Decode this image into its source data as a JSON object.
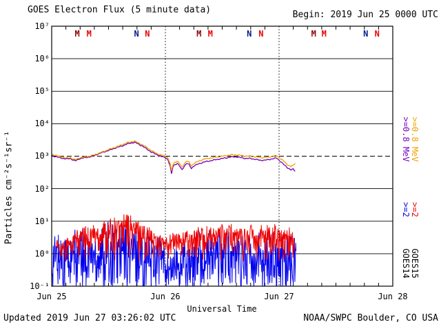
{
  "header": {
    "title": "GOES Electron Flux (5 minute data)",
    "begin": "Begin: 2019 Jun 25 0000 UTC"
  },
  "footer": {
    "updated": "Updated 2019 Jun 27 03:26:02 UTC",
    "source": "NOAA/SWPC Boulder, CO USA"
  },
  "axes": {
    "y_label": "Particles cm⁻²s⁻¹sr⁻¹",
    "x_label": "Universal Time",
    "y_ticks": [
      "10⁷",
      "10⁶",
      "10⁵",
      "10⁴",
      "10³",
      "10²",
      "10¹",
      "10⁰",
      "10⁻¹"
    ],
    "x_ticks": [
      "Jun 25",
      "Jun 26",
      "Jun 27",
      "Jun 28"
    ]
  },
  "legend": {
    "e08": {
      "label": ">=0.8 MeV",
      "goes14_color": "#7700bb",
      "goes15_color": "#f0a000"
    },
    "e2": {
      "label": ">=2",
      "goes14_color": "#0000ee",
      "goes15_color": "#ee0000"
    },
    "goes14": "GOES14",
    "goes15": "GOES15"
  },
  "chart_data": {
    "type": "line",
    "title": "GOES Electron Flux (5 minute data)",
    "xlabel": "Universal Time",
    "ylabel": "Particles cm^-2 s^-1 sr^-1",
    "x_unit": "hours since 2019 Jun 25 0000 UTC",
    "xlim": [
      0,
      72
    ],
    "ylog": true,
    "ylim": [
      0.1,
      10000000
    ],
    "y_tick_exponents": [
      7,
      6,
      5,
      4,
      3,
      2,
      1,
      0,
      -1
    ],
    "x_ticks": [
      {
        "t": 0,
        "label": "Jun 25"
      },
      {
        "t": 24,
        "label": "Jun 26"
      },
      {
        "t": 48,
        "label": "Jun 27"
      },
      {
        "t": 72,
        "label": "Jun 28"
      }
    ],
    "threshold_line": 1000,
    "day_gridlines_t": [
      24,
      48
    ],
    "time_markers": [
      {
        "t": 5.4,
        "label": "M",
        "color": "#8b0000"
      },
      {
        "t": 7.9,
        "label": "M",
        "color": "#e80000"
      },
      {
        "t": 17.9,
        "label": "N",
        "color": "#001a8b"
      },
      {
        "t": 20.2,
        "label": "N",
        "color": "#e80000"
      },
      {
        "t": 31.1,
        "label": "M",
        "color": "#8b0000"
      },
      {
        "t": 33.5,
        "label": "M",
        "color": "#e80000"
      },
      {
        "t": 41.7,
        "label": "N",
        "color": "#001a8b"
      },
      {
        "t": 44.2,
        "label": "N",
        "color": "#e80000"
      },
      {
        "t": 55.3,
        "label": "M",
        "color": "#8b0000"
      },
      {
        "t": 57.5,
        "label": "M",
        "color": "#e80000"
      },
      {
        "t": 66.3,
        "label": "N",
        "color": "#001a8b"
      },
      {
        "t": 68.7,
        "label": "N",
        "color": "#e80000"
      }
    ],
    "series": [
      {
        "name": "GOES14 >=2 MeV",
        "satellite": "GOES14",
        "channel": ">=2 MeV",
        "color": "#0000ee",
        "style": "noise",
        "t_start": 0,
        "t_end": 51.6,
        "floor": 0.08,
        "hourly_max": [
          5,
          4,
          6,
          5,
          3,
          6,
          5,
          7,
          8,
          7,
          9,
          8,
          10,
          9,
          10,
          9,
          8,
          9,
          7,
          6,
          5,
          6,
          4,
          5,
          1.5,
          0.8,
          2,
          1,
          3,
          4,
          3,
          5,
          4,
          5,
          4,
          5,
          5,
          6,
          5,
          7,
          5,
          6,
          5,
          6,
          6,
          5,
          7,
          5,
          6,
          5,
          6,
          4
        ],
        "render": {
          "seed": 7,
          "bias": 0.9
        }
      },
      {
        "name": "GOES15 >=2 MeV",
        "satellite": "GOES15",
        "channel": ">=2 MeV",
        "color": "#ee0000",
        "style": "noise",
        "t_start": 1,
        "t_end": 51.5,
        "floor": 0.5,
        "hourly_max": [
          2,
          3,
          2,
          4,
          3,
          5,
          6,
          7,
          8,
          10,
          9,
          12,
          10,
          14,
          12,
          16,
          18,
          15,
          12,
          10,
          8,
          6,
          5,
          4,
          3,
          4,
          5,
          4,
          5,
          6,
          5,
          7,
          6,
          8,
          6,
          7,
          8,
          7,
          9,
          7,
          8,
          6,
          9,
          7,
          8,
          10,
          7,
          9,
          8,
          6,
          7,
          5
        ],
        "render": {
          "seed": 13,
          "bias": 0.5
        }
      },
      {
        "name": "GOES14 >=0.8 MeV",
        "satellite": "GOES14",
        "channel": ">=0.8 MeV",
        "color": "#7700bb",
        "style": "line",
        "points": [
          [
            0,
            1050
          ],
          [
            1,
            950
          ],
          [
            2,
            880
          ],
          [
            3,
            820
          ],
          [
            4,
            850
          ],
          [
            4.5,
            760
          ],
          [
            5,
            720
          ],
          [
            6,
            850
          ],
          [
            7,
            900
          ],
          [
            8,
            950
          ],
          [
            9,
            1050
          ],
          [
            10,
            1200
          ],
          [
            11,
            1350
          ],
          [
            12,
            1500
          ],
          [
            13,
            1700
          ],
          [
            14,
            1900
          ],
          [
            15,
            2100
          ],
          [
            16,
            2400
          ],
          [
            17,
            2600
          ],
          [
            17.5,
            2650
          ],
          [
            18,
            2500
          ],
          [
            19,
            2100
          ],
          [
            20,
            1700
          ],
          [
            21,
            1350
          ],
          [
            22,
            1150
          ],
          [
            23,
            1000
          ],
          [
            24,
            900
          ],
          [
            24.5,
            800
          ],
          [
            25,
            500
          ],
          [
            25.3,
            280
          ],
          [
            25.6,
            480
          ],
          [
            26,
            550
          ],
          [
            26.5,
            600
          ],
          [
            27,
            500
          ],
          [
            27.5,
            380
          ],
          [
            28,
            500
          ],
          [
            28.5,
            600
          ],
          [
            29,
            550
          ],
          [
            29.5,
            420
          ],
          [
            30,
            500
          ],
          [
            31,
            580
          ],
          [
            32,
            650
          ],
          [
            33,
            700
          ],
          [
            34,
            750
          ],
          [
            35,
            800
          ],
          [
            36,
            850
          ],
          [
            37,
            900
          ],
          [
            38,
            950
          ],
          [
            39,
            950
          ],
          [
            40,
            900
          ],
          [
            41,
            850
          ],
          [
            42,
            850
          ],
          [
            43,
            800
          ],
          [
            44,
            750
          ],
          [
            45,
            750
          ],
          [
            46,
            800
          ],
          [
            47,
            850
          ],
          [
            47.5,
            880
          ],
          [
            48,
            750
          ],
          [
            48.5,
            650
          ],
          [
            49,
            550
          ],
          [
            49.5,
            480
          ],
          [
            50,
            420
          ],
          [
            50.5,
            380
          ],
          [
            51,
            400
          ],
          [
            51.4,
            350
          ]
        ]
      },
      {
        "name": "GOES15 >=0.8 MeV",
        "satellite": "GOES15",
        "channel": ">=0.8 MeV",
        "color": "#f0a000",
        "style": "line",
        "points": [
          [
            0,
            1150
          ],
          [
            1,
            1050
          ],
          [
            2,
            950
          ],
          [
            3,
            880
          ],
          [
            4,
            900
          ],
          [
            4.5,
            820
          ],
          [
            5,
            780
          ],
          [
            6,
            900
          ],
          [
            7,
            950
          ],
          [
            8,
            1000
          ],
          [
            9,
            1100
          ],
          [
            10,
            1250
          ],
          [
            11,
            1400
          ],
          [
            12,
            1600
          ],
          [
            13,
            1800
          ],
          [
            14,
            2000
          ],
          [
            15,
            2300
          ],
          [
            16,
            2600
          ],
          [
            17,
            2800
          ],
          [
            17.5,
            2900
          ],
          [
            18,
            2700
          ],
          [
            19,
            2300
          ],
          [
            20,
            1900
          ],
          [
            21,
            1500
          ],
          [
            22,
            1250
          ],
          [
            23,
            1100
          ],
          [
            24,
            1000
          ],
          [
            24.5,
            900
          ],
          [
            25,
            600
          ],
          [
            25.3,
            350
          ],
          [
            25.6,
            550
          ],
          [
            26,
            650
          ],
          [
            26.5,
            700
          ],
          [
            27,
            600
          ],
          [
            27.5,
            450
          ],
          [
            28,
            600
          ],
          [
            28.5,
            700
          ],
          [
            29,
            650
          ],
          [
            29.5,
            500
          ],
          [
            30,
            600
          ],
          [
            31,
            700
          ],
          [
            32,
            800
          ],
          [
            33,
            850
          ],
          [
            34,
            900
          ],
          [
            35,
            950
          ],
          [
            36,
            1000
          ],
          [
            37,
            1050
          ],
          [
            38,
            1100
          ],
          [
            39,
            1100
          ],
          [
            40,
            1050
          ],
          [
            41,
            1000
          ],
          [
            42,
            1000
          ],
          [
            43,
            950
          ],
          [
            44,
            900
          ],
          [
            45,
            900
          ],
          [
            46,
            950
          ],
          [
            47,
            1000
          ],
          [
            47.5,
            1050
          ],
          [
            48,
            900
          ],
          [
            48.5,
            800
          ],
          [
            49,
            700
          ],
          [
            49.5,
            600
          ],
          [
            50,
            520
          ],
          [
            50.5,
            480
          ],
          [
            51,
            520
          ],
          [
            51.4,
            620
          ]
        ]
      }
    ]
  }
}
